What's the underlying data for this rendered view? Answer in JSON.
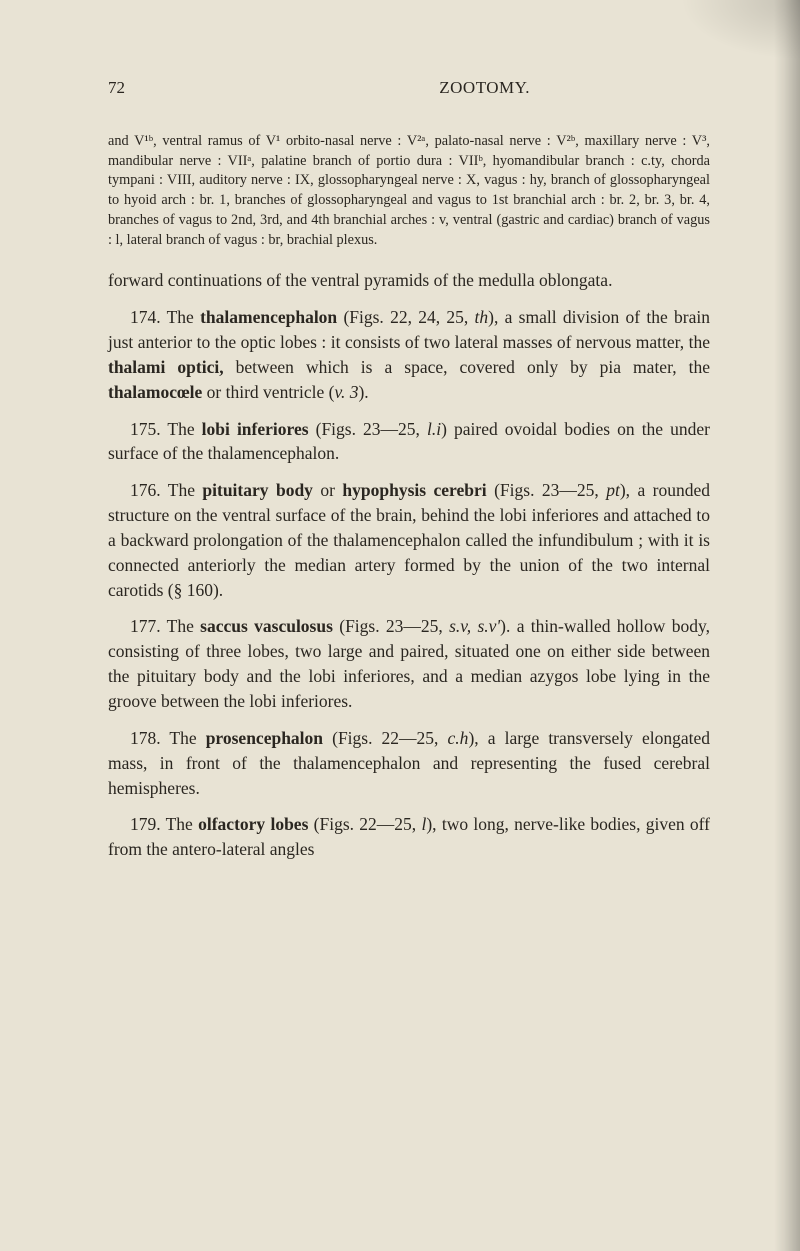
{
  "header": {
    "page_number": "72",
    "running_title": "ZOOTOMY."
  },
  "small_note": "and V¹ᵇ, ventral ramus of V¹ orbito-nasal nerve : V²ᵃ, palato-nasal nerve : V²ᵇ, maxillary nerve : V³, mandibular nerve : VIIᵃ, palatine branch of portio dura : VIIᵇ, hyomandibular branch : c.ty, chorda tympani : VIII, auditory nerve : IX, glossopharyngeal nerve : X, vagus : hy, branch of glossopharyngeal to hyoid arch : br. 1, branches of glossopharyngeal and vagus to 1st branchial arch : br. 2, br. 3, br. 4, branches of vagus to 2nd, 3rd, and 4th branchial arches : v, ventral (gastric and cardiac) branch of vagus : l, lateral branch of vagus : br, brachial plexus.",
  "p1": "forward continuations of the ventral pyramids of the medulla oblongata.",
  "p2_a": "174. The ",
  "p2_b": "thalamencephalon",
  "p2_c": " (Figs. 22, 24, 25, ",
  "p2_d": "th",
  "p2_e": "), a small division of the brain just anterior to the optic lobes : it consists of two lateral masses of nervous matter, the ",
  "p2_f": "thalami optici,",
  "p2_g": " between which is a space, covered only by pia mater, the ",
  "p2_h": "thalamocœle",
  "p2_i": " or third ventricle (",
  "p2_j": "v. 3",
  "p2_k": ").",
  "p3_a": "175. The ",
  "p3_b": "lobi inferiores",
  "p3_c": " (Figs. 23—25, ",
  "p3_d": "l.i",
  "p3_e": ") paired ovoidal bodies on the under surface of the thalamencephalon.",
  "p4_a": "176. The ",
  "p4_b": "pituitary body",
  "p4_c": " or ",
  "p4_d": "hypophysis cerebri",
  "p4_e": " (Figs. 23—25, ",
  "p4_f": "pt",
  "p4_g": "), a rounded structure on the ventral surface of the brain, behind the lobi inferiores and attached to a backward prolongation of the thalamencephalon called the infundibulum ; with it is connected anteriorly the median artery formed by the union of the two internal carotids (§ 160).",
  "p5_a": "177. The ",
  "p5_b": "saccus vasculosus",
  "p5_c": " (Figs. 23—25, ",
  "p5_d": "s.v, s.v'",
  "p5_e": "). a thin-walled hollow body, consisting of three lobes, two large and paired, situated one on either side between the pituitary body and the lobi inferiores, and a median azygos lobe lying in the groove between the lobi inferiores.",
  "p6_a": "178. The ",
  "p6_b": "prosencephalon",
  "p6_c": " (Figs. 22—25, ",
  "p6_d": "c.h",
  "p6_e": "), a large transversely elongated mass, in front of the thalamen­cephalon and representing the fused cerebral hemispheres.",
  "p7_a": "179. The ",
  "p7_b": "olfactory lobes",
  "p7_c": " (Figs. 22—25, ",
  "p7_d": "l",
  "p7_e": "), two long, nerve-like bodies, given off from the antero-lateral angles"
}
